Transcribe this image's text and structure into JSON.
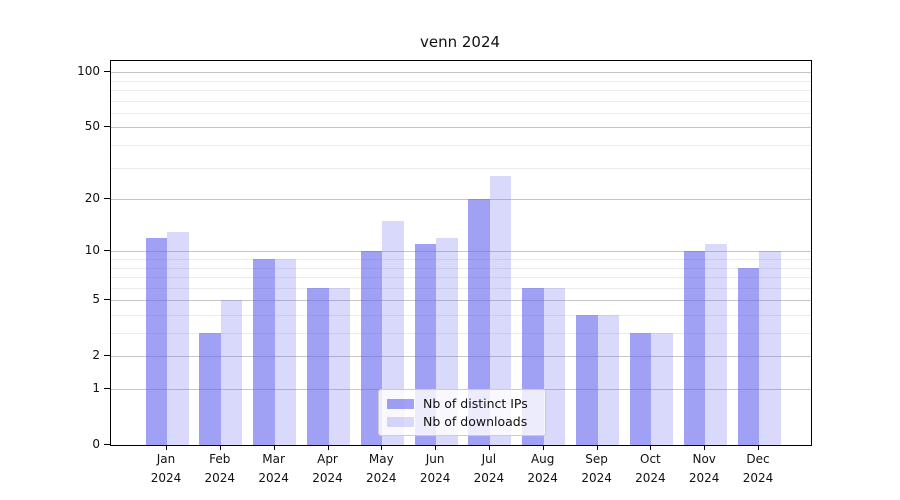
{
  "title": "venn 2024",
  "colors": {
    "ips_bar": "rgba(102,102,238,0.62)",
    "downloads_bar": "rgba(102,102,238,0.25)",
    "grid_major": "#c6c6c6",
    "grid_minor": "#ebebeb",
    "axis": "#000000"
  },
  "legend": {
    "items": [
      "Nb of distinct IPs",
      "Nb of downloads"
    ]
  },
  "chart_data": {
    "type": "bar",
    "title": "venn 2024",
    "categories": [
      "Jan 2024",
      "Feb 2024",
      "Mar 2024",
      "Apr 2024",
      "May 2024",
      "Jun 2024",
      "Jul 2024",
      "Aug 2024",
      "Sep 2024",
      "Oct 2024",
      "Nov 2024",
      "Dec 2024"
    ],
    "x_tick_line1": [
      "Jan",
      "Feb",
      "Mar",
      "Apr",
      "May",
      "Jun",
      "Jul",
      "Aug",
      "Sep",
      "Oct",
      "Nov",
      "Dec"
    ],
    "x_tick_line2": [
      "2024",
      "2024",
      "2024",
      "2024",
      "2024",
      "2024",
      "2024",
      "2024",
      "2024",
      "2024",
      "2024",
      "2024"
    ],
    "series": [
      {
        "name": "Nb of distinct IPs",
        "values": [
          12,
          3,
          9,
          6,
          10,
          11,
          20,
          6,
          4,
          3,
          10,
          8
        ]
      },
      {
        "name": "Nb of downloads",
        "values": [
          13,
          5,
          9,
          6,
          15,
          12,
          27,
          6,
          4,
          3,
          11,
          10
        ]
      }
    ],
    "xlabel": "",
    "ylabel": "",
    "yscale": "log1p",
    "ylim": [
      0,
      115
    ],
    "y_major_ticks": [
      100,
      50,
      20,
      10,
      5,
      2,
      1,
      0
    ],
    "y_minor_gridlines": [
      3,
      4,
      6,
      7,
      8,
      9,
      30,
      40,
      60,
      70,
      80,
      90
    ],
    "grid": true,
    "legend_position": "lower center"
  }
}
